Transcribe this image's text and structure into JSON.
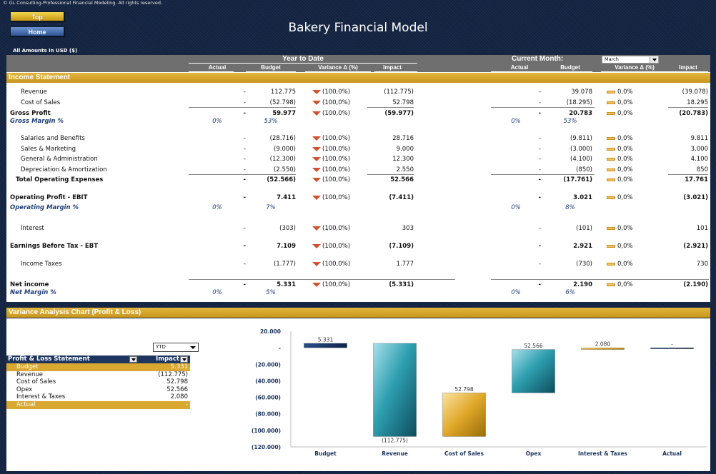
{
  "header": {
    "copyright": "© GL Consulting-Professional Financial Modeling. All rights reserved.",
    "top_button": "Top",
    "home_button": "Home",
    "title": "Bakery Financial Model",
    "amounts_note": "All Amounts in  USD ($)"
  },
  "colors": {
    "gold": "#d8a830",
    "navy": "#1e3560",
    "grey_header": "#6f6f6f",
    "neg_triangle": "#d2502a",
    "neutral_bar": "#f0c060",
    "italic_blue": "#1f3f7a"
  },
  "groups": {
    "ytd": "Year to Date",
    "cm": "Current Month:",
    "month_selected": "March"
  },
  "columns": {
    "actual": "Actual",
    "budget": "Budget",
    "variance": "Variance Δ  (%)",
    "impact": "Impact"
  },
  "section_income": "Income Statement",
  "rows": [
    {
      "label": "Revenue",
      "ytd": [
        "-",
        "112.775",
        "(100,0%)",
        "(112.775)"
      ],
      "cm": [
        "-",
        "39.078",
        "0,0%",
        "(39.078)"
      ]
    },
    {
      "label": "Cost of Sales",
      "ytd": [
        "-",
        "(52.798)",
        "(100,0%)",
        "52.798"
      ],
      "cm": [
        "-",
        "(18.295)",
        "0,0%",
        "18.295"
      ]
    },
    {
      "label": "Gross Profit",
      "ytd": [
        "-",
        "59.977",
        "(100,0%)",
        "(59.977)"
      ],
      "cm": [
        "-",
        "20.783",
        "0,0%",
        "(20.783)"
      ]
    },
    {
      "label": "Gross Margin %",
      "ytd": [
        "0%",
        "53%"
      ],
      "cm": [
        "0%",
        "53%"
      ]
    },
    {
      "label": "Salaries and Benefits",
      "ytd": [
        "-",
        "(28.716)",
        "(100,0%)",
        "28.716"
      ],
      "cm": [
        "-",
        "(9.811)",
        "0,0%",
        "9.811"
      ]
    },
    {
      "label": "Sales & Marketing",
      "ytd": [
        "-",
        "(9.000)",
        "(100,0%)",
        "9.000"
      ],
      "cm": [
        "-",
        "(3.000)",
        "0,0%",
        "3.000"
      ]
    },
    {
      "label": "General & Administration",
      "ytd": [
        "-",
        "(12.300)",
        "(100,0%)",
        "12.300"
      ],
      "cm": [
        "-",
        "(4.100)",
        "0,0%",
        "4.100"
      ]
    },
    {
      "label": "Depreciation & Amortization",
      "ytd": [
        "-",
        "(2.550)",
        "(100,0%)",
        "2.550"
      ],
      "cm": [
        "-",
        "(850)",
        "0,0%",
        "850"
      ]
    },
    {
      "label": "Total Operating Expenses",
      "ytd": [
        "-",
        "(52.566)",
        "(100,0%)",
        "52.566"
      ],
      "cm": [
        "-",
        "(17.761)",
        "0,0%",
        "17.761"
      ]
    },
    {
      "label": "Operating Profit - EBIT",
      "ytd": [
        "-",
        "7.411",
        "(100,0%)",
        "(7.411)"
      ],
      "cm": [
        "-",
        "3.021",
        "0,0%",
        "(3.021)"
      ]
    },
    {
      "label": "Operating Margin %",
      "ytd": [
        "0%",
        "7%"
      ],
      "cm": [
        "0%",
        "8%"
      ]
    },
    {
      "label": "Interest",
      "ytd": [
        "-",
        "(303)",
        "(100,0%)",
        "303"
      ],
      "cm": [
        "-",
        "(101)",
        "0,0%",
        "101"
      ]
    },
    {
      "label": "Earnings Before Tax - EBT",
      "ytd": [
        "-",
        "7.109",
        "(100,0%)",
        "(7.109)"
      ],
      "cm": [
        "-",
        "2.921",
        "0,0%",
        "(2.921)"
      ]
    },
    {
      "label": "Income Taxes",
      "ytd": [
        "-",
        "(1.777)",
        "(100,0%)",
        "1.777"
      ],
      "cm": [
        "-",
        "(730)",
        "0,0%",
        "730"
      ]
    },
    {
      "label": "Net income",
      "ytd": [
        "-",
        "5.331",
        "(100,0%)",
        "(5.331)"
      ],
      "cm": [
        "-",
        "2.190",
        "0,0%",
        "(2.190)"
      ]
    },
    {
      "label": "Net Margin %",
      "ytd": [
        "0%",
        "5%"
      ],
      "cm": [
        "0%",
        "6%"
      ]
    }
  ],
  "section_chart": "Variance Analysis Chart (Profit & Loss)",
  "pivot": {
    "filter_value": "YTD",
    "header_label": "Profit & Loss Statement",
    "header_value": "Impact",
    "rows": [
      {
        "label": "Budget",
        "value": "5.331"
      },
      {
        "label": "Revenue",
        "value": "(112.775)"
      },
      {
        "label": "Cost of Sales",
        "value": "52.798"
      },
      {
        "label": "Opex",
        "value": "52.566"
      },
      {
        "label": "Interest & Taxes",
        "value": "2.080"
      },
      {
        "label": "Actual",
        "value": "-"
      }
    ]
  },
  "chart_data": {
    "type": "bar",
    "subtype": "waterfall",
    "categories": [
      "Budget",
      "Revenue",
      "Cost of Sales",
      "Opex",
      "Interest & Taxes",
      "Actual"
    ],
    "values": [
      5331,
      -112775,
      52798,
      52566,
      2080,
      0
    ],
    "data_labels": [
      "5.331",
      "(112.775)",
      "52.798",
      "52.566",
      "2.080",
      "-"
    ],
    "y_ticks": [
      "20.000",
      "-",
      "(20.000)",
      "(40.000)",
      "(60.000)",
      "(80.000)",
      "(100.000)",
      "(120.000)"
    ],
    "y_tick_values": [
      20000,
      0,
      -20000,
      -40000,
      -60000,
      -80000,
      -100000,
      -120000
    ],
    "ylim": [
      -120000,
      20000
    ],
    "grid": false,
    "legend": "none"
  }
}
